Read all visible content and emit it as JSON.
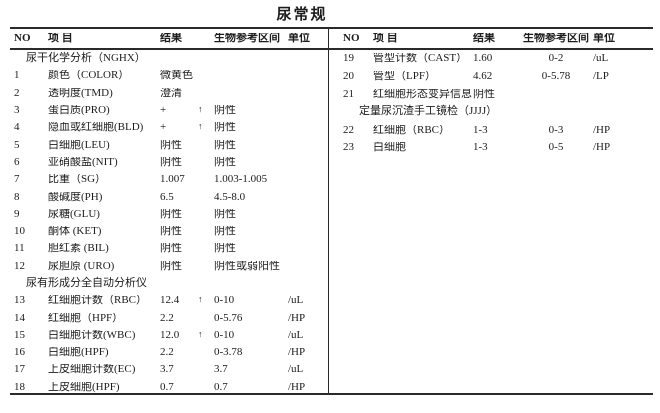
{
  "title": "尿常规",
  "columns": {
    "no": "NO",
    "item": "项  目",
    "result": "结果",
    "ref": "生物参考区间",
    "unit": "单位"
  },
  "left_rows": [
    {
      "type": "section",
      "text": "尿干化学分析（NGHX）"
    },
    {
      "no": "1",
      "item": "颜色（COLOR）",
      "result": "微黄色",
      "flag": "",
      "ref": "",
      "unit": ""
    },
    {
      "no": "2",
      "item": "透明度(TMD)",
      "result": "澄清",
      "flag": "",
      "ref": "",
      "unit": ""
    },
    {
      "no": "3",
      "item": "蛋白质(PRO)",
      "result": "+",
      "flag": "↑",
      "ref": "阴性",
      "unit": ""
    },
    {
      "no": "4",
      "item": "隐血或红细胞(BLD)",
      "result": "+",
      "flag": "↑",
      "ref": "阴性",
      "unit": ""
    },
    {
      "no": "5",
      "item": "白细胞(LEU)",
      "result": "阴性",
      "flag": "",
      "ref": "阴性",
      "unit": ""
    },
    {
      "no": "6",
      "item": "亚硝酸盐(NIT)",
      "result": "阴性",
      "flag": "",
      "ref": "阴性",
      "unit": ""
    },
    {
      "no": "7",
      "item": "比重（SG）",
      "result": "1.007",
      "flag": "",
      "ref": "1.003-1.005",
      "unit": ""
    },
    {
      "no": "8",
      "item": "酸碱度(PH)",
      "result": "6.5",
      "flag": "",
      "ref": "4.5-8.0",
      "unit": ""
    },
    {
      "no": "9",
      "item": "尿糖(GLU)",
      "result": "阴性",
      "flag": "",
      "ref": "阴性",
      "unit": ""
    },
    {
      "no": "10",
      "item": "酮体 (KET)",
      "result": "阴性",
      "flag": "",
      "ref": "阴性",
      "unit": ""
    },
    {
      "no": "11",
      "item": "胆红素 (BIL)",
      "result": "阴性",
      "flag": "",
      "ref": "阴性",
      "unit": ""
    },
    {
      "no": "12",
      "item": "尿胆原 (URO)",
      "result": "阴性",
      "flag": "",
      "ref": "阴性或弱阳性",
      "unit": ""
    },
    {
      "type": "section",
      "text": "尿有形成分全自动分析仪"
    },
    {
      "no": "13",
      "item": "红细胞计数（RBC）",
      "result": "12.4",
      "flag": "↑",
      "ref": "0-10",
      "unit": "/uL"
    },
    {
      "no": "14",
      "item": "红细胞（HPF）",
      "result": "2.2",
      "flag": "",
      "ref": "0-5.76",
      "unit": "/HP"
    },
    {
      "no": "15",
      "item": "白细胞计数(WBC)",
      "result": "12.0",
      "flag": "↑",
      "ref": "0-10",
      "unit": "/uL"
    },
    {
      "no": "16",
      "item": "白细胞(HPF)",
      "result": "2.2",
      "flag": "",
      "ref": "0-3.78",
      "unit": "/HP"
    },
    {
      "no": "17",
      "item": "上皮细胞计数(EC)",
      "result": "3.7",
      "flag": "",
      "ref": "3.7",
      "unit": "/uL"
    },
    {
      "no": "18",
      "item": "上皮细胞(HPF)",
      "result": "0.7",
      "flag": "",
      "ref": "0.7",
      "unit": "/HP"
    }
  ],
  "right_rows": [
    {
      "no": "19",
      "item": "管型计数（CAST）",
      "result": "1.60",
      "flag": "",
      "ref": "0-2",
      "unit": "/uL"
    },
    {
      "no": "20",
      "item": "管型（LPF）",
      "result": "4.62",
      "flag": "",
      "ref": "0-5.78",
      "unit": "/LP"
    },
    {
      "no": "21",
      "item": "红细胞形态变异信息",
      "result": "阴性",
      "flag": "",
      "ref": "",
      "unit": ""
    },
    {
      "type": "section",
      "text": "定量尿沉渣手工镜检（JJJJ）"
    },
    {
      "no": "22",
      "item": "红细胞（RBC）",
      "result": "1-3",
      "flag": "",
      "ref": "0-3",
      "unit": "/HP"
    },
    {
      "no": "23",
      "item": "白细胞",
      "result": "1-3",
      "flag": "",
      "ref": "0-5",
      "unit": "/HP"
    }
  ]
}
